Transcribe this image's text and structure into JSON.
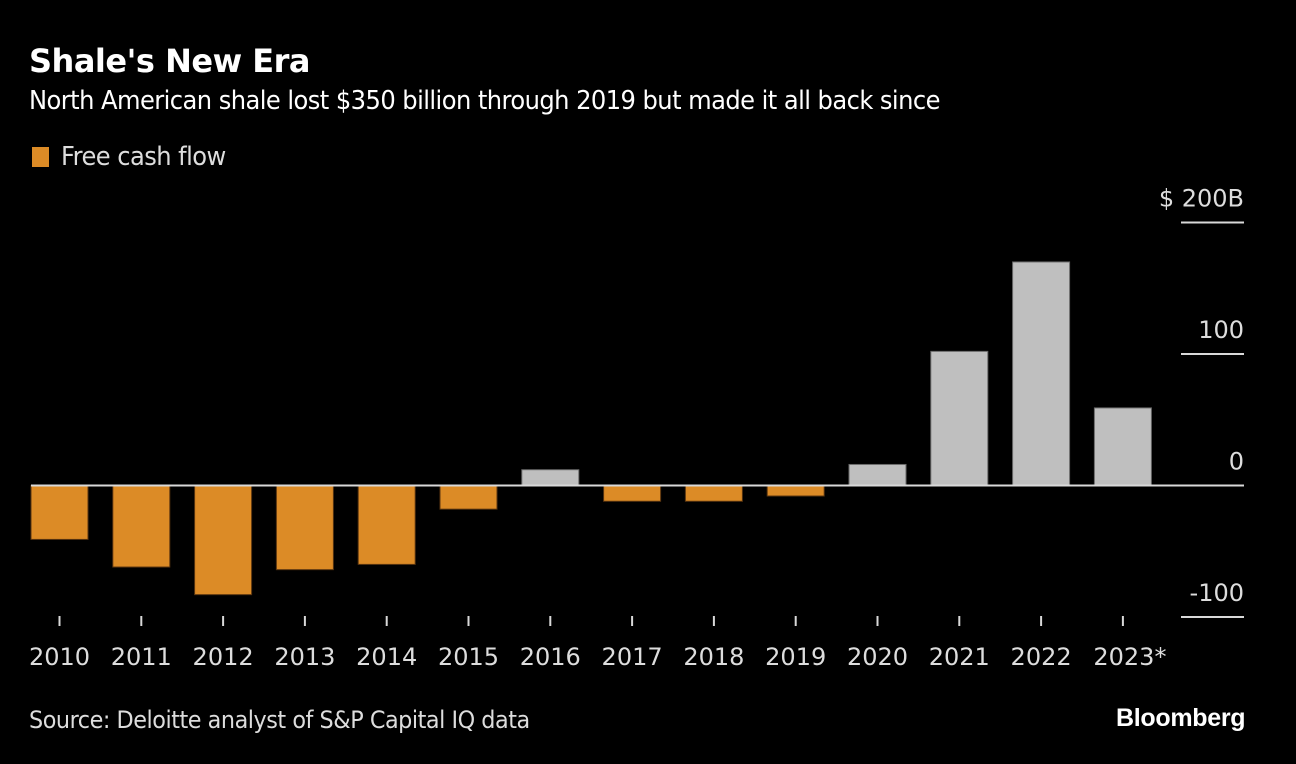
{
  "chart_data": {
    "type": "bar",
    "title": "Shale's New Era",
    "subtitle": "North American shale lost $350 billion through 2019 but made it all back since",
    "legend": [
      {
        "name": "Free cash flow",
        "color": "#dc8b26"
      }
    ],
    "legend_position": "top-left",
    "categories": [
      "2010",
      "2011",
      "2012",
      "2013",
      "2014",
      "2015",
      "2016",
      "2017",
      "2018",
      "2019",
      "2020",
      "2021",
      "2022",
      "2023*"
    ],
    "series": [
      {
        "name": "Free cash flow",
        "unit": "$B",
        "values": [
          -41,
          -62,
          -83,
          -64,
          -60,
          -18,
          12,
          -12,
          -12,
          -8,
          16,
          102,
          170,
          59
        ]
      }
    ],
    "colors": {
      "negative": "#dc8b26",
      "positive": "#bfbfbf",
      "axis": "#d9d9d9",
      "background": "#000000"
    },
    "xlabel": "",
    "ylabel": "",
    "ylim": [
      -100,
      200
    ],
    "y_ticks": [
      200,
      100,
      0,
      -100
    ],
    "y_tick_labels": [
      "$ 200B",
      "100",
      "0",
      "-100"
    ],
    "y_axis_position": "right",
    "grid": false,
    "source": "Source: Deloitte analyst of S&P Capital IQ data",
    "brand": "Bloomberg"
  }
}
